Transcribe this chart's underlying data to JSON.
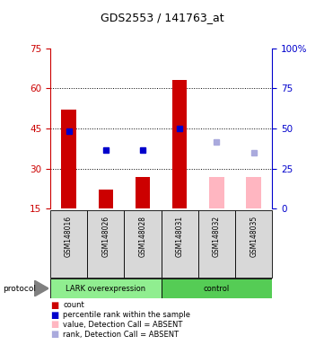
{
  "title": "GDS2553 / 141763_at",
  "samples": [
    "GSM148016",
    "GSM148026",
    "GSM148028",
    "GSM148031",
    "GSM148032",
    "GSM148035"
  ],
  "bar_values": [
    52,
    22,
    27,
    63,
    null,
    null
  ],
  "bar_color_present": "#CC0000",
  "bar_color_absent": "#FFB6C1",
  "bar_absent_values": [
    null,
    null,
    null,
    null,
    27,
    27
  ],
  "dot_values_present": [
    44,
    37,
    37,
    45,
    null,
    null
  ],
  "dot_color_present": "#0000CC",
  "dot_absent_values": [
    null,
    null,
    null,
    null,
    40,
    36
  ],
  "dot_color_absent": "#AAAADD",
  "ylim_left": [
    15,
    75
  ],
  "ylim_right": [
    0,
    100
  ],
  "yticks_left": [
    15,
    30,
    45,
    60,
    75
  ],
  "yticks_right": [
    0,
    25,
    50,
    75,
    100
  ],
  "ytick_labels_right": [
    "0",
    "25",
    "50",
    "75",
    "100%"
  ],
  "hlines": [
    30,
    45,
    60
  ],
  "ylabel_left_color": "#CC0000",
  "ylabel_right_color": "#0000CC",
  "legend_items": [
    {
      "label": "count",
      "color": "#CC0000"
    },
    {
      "label": "percentile rank within the sample",
      "color": "#0000CC"
    },
    {
      "label": "value, Detection Call = ABSENT",
      "color": "#FFB6C1"
    },
    {
      "label": "rank, Detection Call = ABSENT",
      "color": "#AAAADD"
    }
  ],
  "groups_info": [
    {
      "label": "LARK overexpression",
      "start": 0,
      "end": 2,
      "color": "#90EE90"
    },
    {
      "label": "control",
      "start": 3,
      "end": 5,
      "color": "#55CC55"
    }
  ],
  "protocol_label": "protocol",
  "sample_bg_color": "#D8D8D8",
  "bar_width": 0.4
}
